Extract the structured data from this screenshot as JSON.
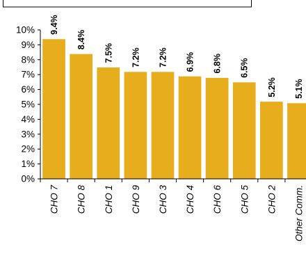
{
  "chart_data": {
    "type": "bar",
    "title": "",
    "xlabel": "",
    "ylabel": "",
    "categories": [
      "CHO 7",
      "CHO 8",
      "CHO 1",
      "CHO 9",
      "CHO 3",
      "CHO 4",
      "CHO 6",
      "CHO 5",
      "CHO 2",
      "Other Comm."
    ],
    "values": [
      9.4,
      8.4,
      7.5,
      7.2,
      7.2,
      6.9,
      6.8,
      6.5,
      5.2,
      5.1
    ],
    "data_labels": [
      "9.4%",
      "8.4%",
      "7.5%",
      "7.2%",
      "7.2%",
      "6.9%",
      "6.8%",
      "6.5%",
      "5.2%",
      "5.1%"
    ],
    "ylim": [
      0,
      10
    ],
    "y_ticks": [
      0,
      1,
      2,
      3,
      4,
      5,
      6,
      7,
      8,
      9,
      10
    ],
    "y_tick_labels": [
      "0%",
      "1%",
      "2%",
      "3%",
      "4%",
      "5%",
      "6%",
      "7%",
      "8%",
      "9%",
      "10%"
    ],
    "grid": false,
    "legend": "none",
    "bar_color": "#E8AD1C",
    "bar_edge_color": "#FFFFFF"
  }
}
